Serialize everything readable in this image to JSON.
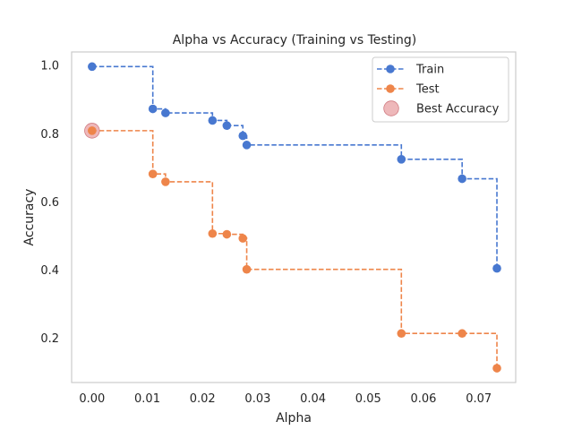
{
  "chart_data": {
    "type": "line",
    "title": "Alpha vs Accuracy (Training vs Testing)",
    "xlabel": "Alpha",
    "ylabel": "Accuracy",
    "xlim": [
      -0.0037,
      0.0767
    ],
    "ylim": [
      0.07,
      1.04
    ],
    "xticks": [
      0.0,
      0.01,
      0.02,
      0.03,
      0.04,
      0.05,
      0.06,
      0.07
    ],
    "xtick_labels": [
      "0.00",
      "0.01",
      "0.02",
      "0.03",
      "0.04",
      "0.05",
      "0.06",
      "0.07"
    ],
    "yticks": [
      0.2,
      0.4,
      0.6,
      0.8,
      1.0
    ],
    "ytick_labels": [
      "0.2",
      "0.4",
      "0.6",
      "0.8",
      "1.0"
    ],
    "grid": false,
    "legend_position": "top-right",
    "series": [
      {
        "name": "Train",
        "color": "#4878d0",
        "linestyle": "dashed",
        "drawstyle": "steps-post",
        "marker": "circle",
        "x": [
          0.0,
          0.011,
          0.0133,
          0.0218,
          0.0244,
          0.0273,
          0.028,
          0.056,
          0.067,
          0.0733
        ],
        "y": [
          0.997,
          0.873,
          0.861,
          0.839,
          0.824,
          0.794,
          0.767,
          0.725,
          0.668,
          0.405
        ]
      },
      {
        "name": "Test",
        "color": "#ee854a",
        "linestyle": "dashed",
        "drawstyle": "steps-post",
        "marker": "circle",
        "x": [
          0.0,
          0.011,
          0.0133,
          0.0218,
          0.0244,
          0.0273,
          0.028,
          0.056,
          0.067,
          0.0733
        ],
        "y": [
          0.809,
          0.682,
          0.659,
          0.507,
          0.505,
          0.493,
          0.402,
          0.214,
          0.214,
          0.112
        ]
      }
    ],
    "best_accuracy": {
      "name": "Best Accuracy",
      "x": 0.0,
      "y": 0.809,
      "color": "#e8a0a3"
    }
  }
}
